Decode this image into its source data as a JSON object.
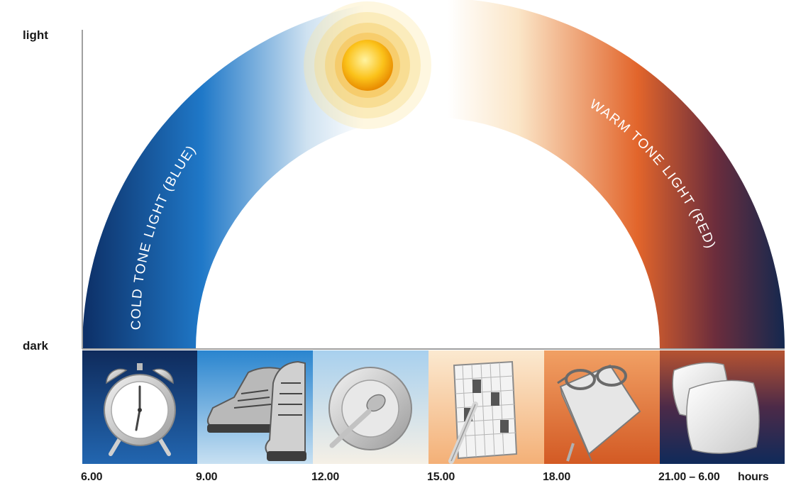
{
  "y_axis": {
    "top_label": "light",
    "bottom_label": "dark"
  },
  "arc_labels": {
    "cold": "COLD TONE LIGHT (BLUE)",
    "warm": "WARM TONE LIGHT (RED)"
  },
  "x_axis": {
    "ticks": [
      "6.00",
      "9.00",
      "12.00",
      "15.00",
      "18.00",
      "21.00 – 6.00"
    ],
    "unit": "hours"
  },
  "activities": [
    {
      "icon": "alarm-clock-icon"
    },
    {
      "icon": "hiking-boots-icon"
    },
    {
      "icon": "plate-spoon-icon"
    },
    {
      "icon": "crossword-pencil-icon"
    },
    {
      "icon": "book-glasses-icon"
    },
    {
      "icon": "pillows-icon"
    }
  ],
  "colors": {
    "cold_dark": "#0d2f66",
    "cold_mid": "#1f78c8",
    "cold_light": "#cfe2f1",
    "warm_light": "#fbe6c8",
    "warm_mid": "#e2652b",
    "warm_dark": "#13284f",
    "sun": "#f6a800"
  }
}
